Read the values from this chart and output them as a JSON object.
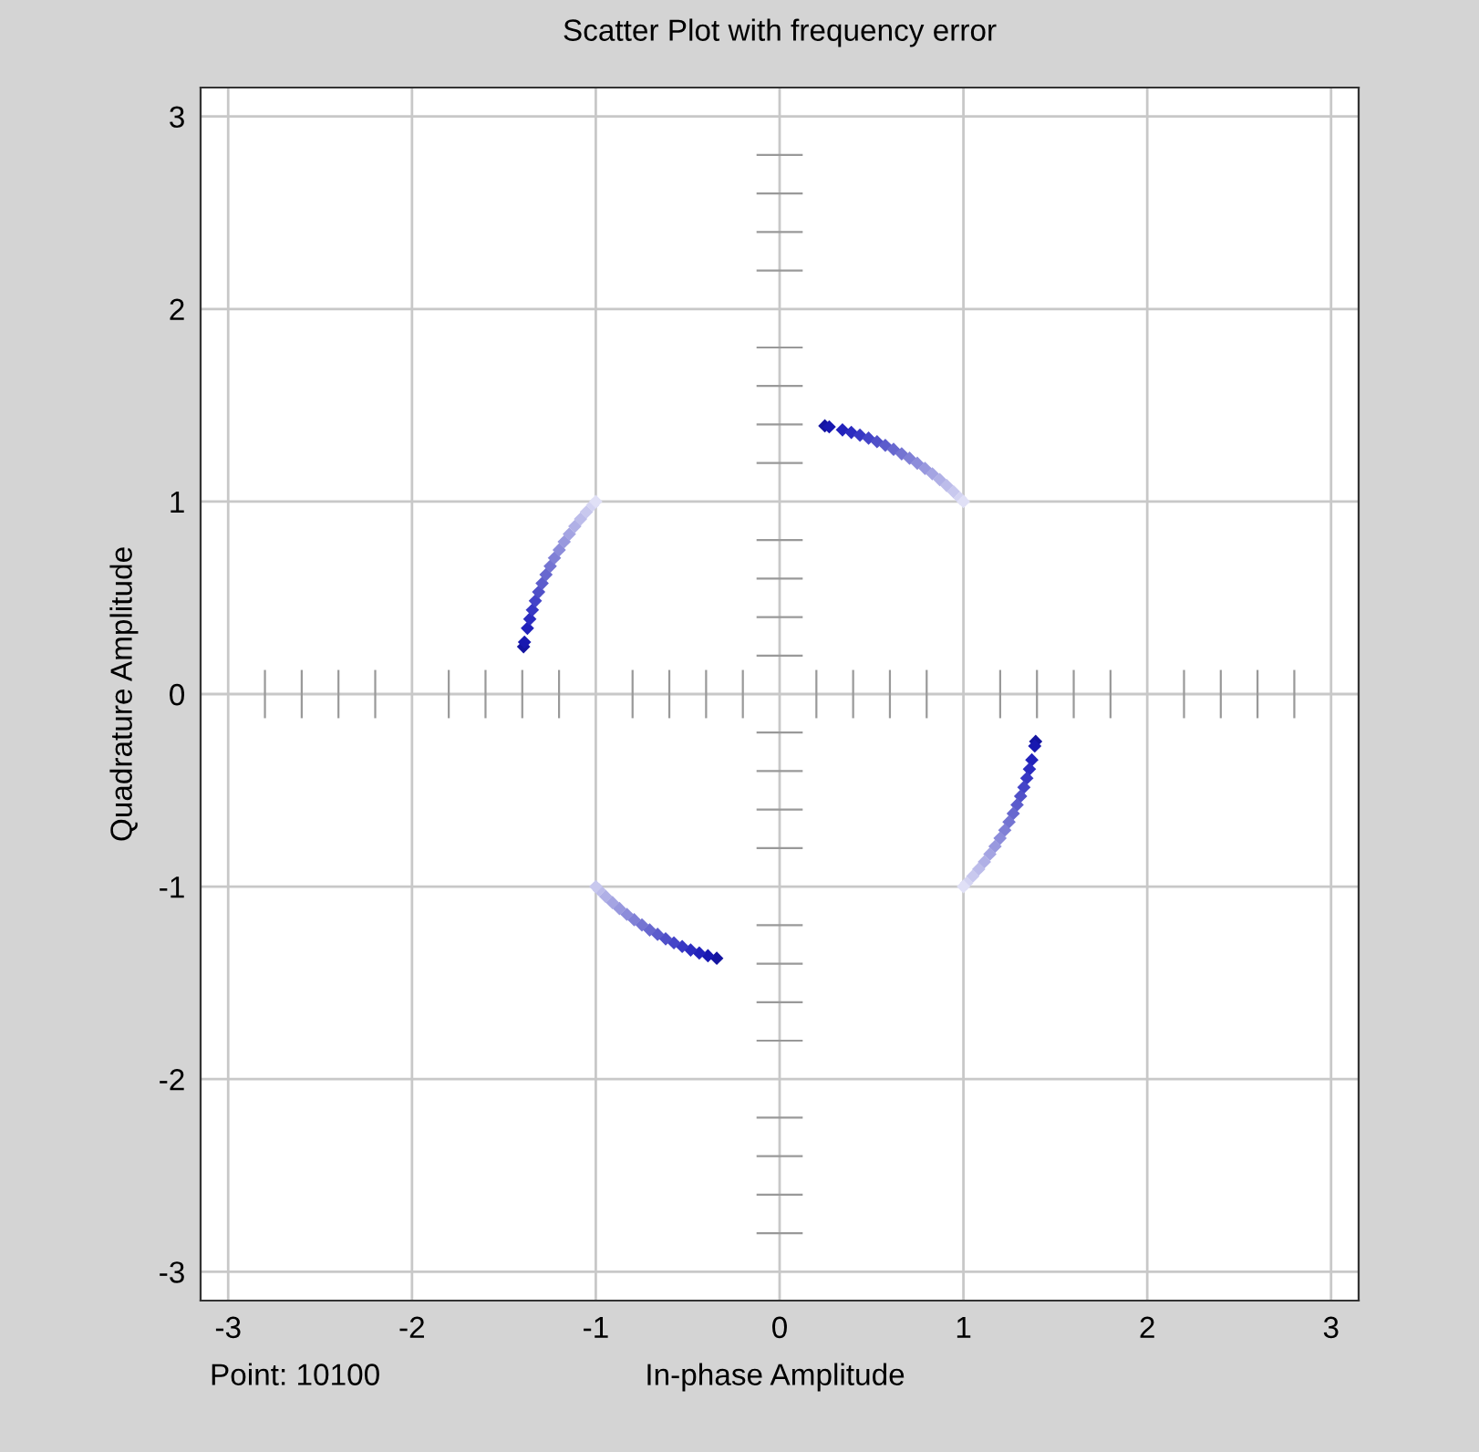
{
  "chart_data": {
    "type": "scatter",
    "title": "Scatter Plot with frequency error",
    "xlabel": "In-phase Amplitude",
    "ylabel": "Quadrature Amplitude",
    "annotations": [
      "Point: 10100"
    ],
    "xlim": [
      -3.15,
      3.15
    ],
    "ylim": [
      -3.15,
      3.15
    ],
    "xticks": [
      -3,
      -2,
      -1,
      0,
      1,
      2,
      3
    ],
    "yticks": [
      -3,
      -2,
      -1,
      0,
      1,
      2,
      3
    ],
    "grid": true,
    "marker": "diamond",
    "series": [
      {
        "x": [
          0.246,
          0.27,
          0.342,
          0.39,
          0.437,
          0.484,
          0.53,
          0.575,
          0.62,
          0.664,
          0.707,
          0.749,
          0.791,
          0.831,
          0.871,
          0.909,
          0.946,
          0.982,
          1.0
        ],
        "values": [
          1.393,
          1.388,
          1.372,
          1.359,
          1.345,
          1.329,
          1.311,
          1.292,
          1.271,
          1.248,
          1.225,
          1.199,
          1.172,
          1.144,
          1.114,
          1.083,
          1.051,
          1.017,
          1.0
        ],
        "colors": [
          "#1414a0",
          "#1818b0",
          "#2222bb",
          "#2c2cc0",
          "#3838c4",
          "#4444c8",
          "#5050c8",
          "#5c5ccc",
          "#6868cf",
          "#7474d2",
          "#8080d6",
          "#8c8cda",
          "#9898de",
          "#a4a4e2",
          "#b0b0e6",
          "#bcbcea",
          "#c8c8ee",
          "#d4d4f2",
          "#e0e0f6"
        ]
      },
      {
        "x": [
          -1.393,
          -1.388,
          -1.372,
          -1.359,
          -1.345,
          -1.329,
          -1.311,
          -1.292,
          -1.271,
          -1.248,
          -1.225,
          -1.199,
          -1.172,
          -1.144,
          -1.114,
          -1.083,
          -1.051,
          -1.017,
          -1.0
        ],
        "values": [
          0.246,
          0.27,
          0.342,
          0.39,
          0.437,
          0.484,
          0.53,
          0.575,
          0.62,
          0.664,
          0.707,
          0.749,
          0.791,
          0.831,
          0.871,
          0.909,
          0.946,
          0.982,
          1.0
        ],
        "colors": [
          "#1414a0",
          "#1818b0",
          "#2222bb",
          "#2c2cc0",
          "#3838c4",
          "#4444c8",
          "#5050c8",
          "#5c5ccc",
          "#6868cf",
          "#7474d2",
          "#8080d6",
          "#8c8cda",
          "#9898de",
          "#a4a4e2",
          "#b0b0e6",
          "#bcbcea",
          "#c8c8ee",
          "#d4d4f2",
          "#e0e0f6"
        ]
      },
      {
        "x": [
          -0.342,
          -0.39,
          -0.437,
          -0.484,
          -0.53,
          -0.575,
          -0.62,
          -0.664,
          -0.707,
          -0.749,
          -0.791,
          -0.831,
          -0.871,
          -0.909,
          -0.946,
          -0.982,
          -1.0
        ],
        "values": [
          -1.372,
          -1.359,
          -1.345,
          -1.329,
          -1.311,
          -1.292,
          -1.271,
          -1.248,
          -1.225,
          -1.199,
          -1.172,
          -1.144,
          -1.114,
          -1.083,
          -1.051,
          -1.017,
          -1.0
        ],
        "colors": [
          "#1414a0",
          "#1818b0",
          "#2222bb",
          "#2c2cc0",
          "#3838c4",
          "#4444c8",
          "#5050c8",
          "#5c5ccc",
          "#6868cf",
          "#7474d2",
          "#8080d6",
          "#8c8cda",
          "#9898de",
          "#a4a4e2",
          "#b0b0e6",
          "#bcbcea",
          "#c8c8ee"
        ]
      },
      {
        "x": [
          1.393,
          1.388,
          1.372,
          1.359,
          1.345,
          1.329,
          1.311,
          1.292,
          1.271,
          1.248,
          1.225,
          1.199,
          1.172,
          1.144,
          1.114,
          1.083,
          1.051,
          1.017,
          1.0
        ],
        "values": [
          -0.246,
          -0.27,
          -0.342,
          -0.39,
          -0.437,
          -0.484,
          -0.53,
          -0.575,
          -0.62,
          -0.664,
          -0.707,
          -0.749,
          -0.791,
          -0.831,
          -0.871,
          -0.909,
          -0.946,
          -0.982,
          -1.0
        ],
        "colors": [
          "#1414a0",
          "#1818b0",
          "#2222bb",
          "#2c2cc0",
          "#3838c4",
          "#4444c8",
          "#5050c8",
          "#5c5ccc",
          "#6868cf",
          "#7474d2",
          "#8080d6",
          "#8c8cda",
          "#9898de",
          "#a4a4e2",
          "#b0b0e6",
          "#bcbcea",
          "#c8c8ee",
          "#d4d4f2",
          "#e0e0f6"
        ]
      }
    ]
  }
}
